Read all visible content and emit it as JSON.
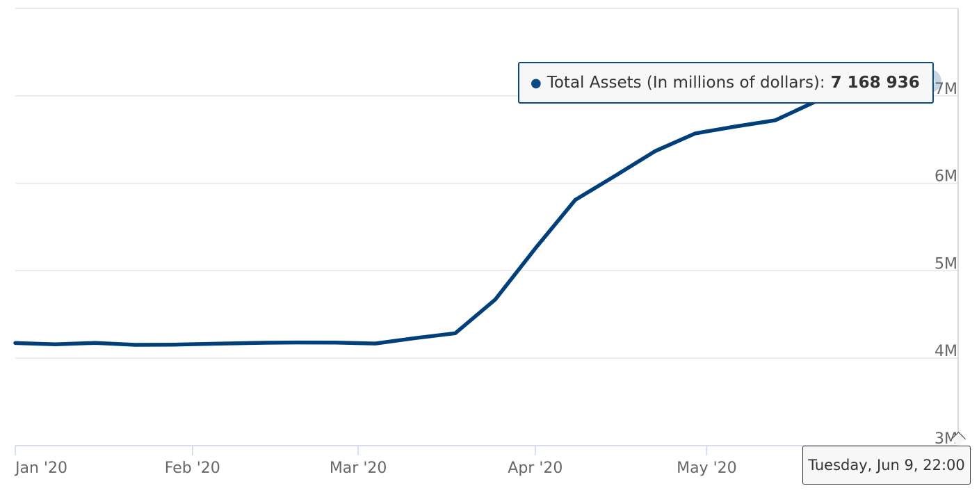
{
  "chart_data": {
    "type": "line",
    "title": "",
    "xlabel": "",
    "ylabel": "",
    "x_ticks": [
      "Jan '20",
      "Feb '20",
      "Mar '20",
      "Apr '20",
      "May '20"
    ],
    "y_ticks": [
      "3M",
      "4M",
      "5M",
      "6M",
      "7M"
    ],
    "ylim": [
      3000000,
      8000000
    ],
    "xlim": [
      "2020-01-01",
      "2020-06-14"
    ],
    "grid": true,
    "series": [
      {
        "name": "Total Assets (In millions of dollars)",
        "color": "#003f7a",
        "x": [
          "2020-01-01",
          "2020-01-08",
          "2020-01-15",
          "2020-01-22",
          "2020-01-29",
          "2020-02-05",
          "2020-02-12",
          "2020-02-19",
          "2020-02-26",
          "2020-03-04",
          "2020-03-11",
          "2020-03-18",
          "2020-03-25",
          "2020-04-01",
          "2020-04-08",
          "2020-04-15",
          "2020-04-22",
          "2020-04-29",
          "2020-05-06",
          "2020-05-13",
          "2020-05-20",
          "2020-05-27",
          "2020-06-03",
          "2020-06-09"
        ],
        "values": [
          4173000,
          4158000,
          4175000,
          4153000,
          4155000,
          4165000,
          4175000,
          4180000,
          4178000,
          4168000,
          4230000,
          4285000,
          4671000,
          5255000,
          5810000,
          6086000,
          6368000,
          6570000,
          6649000,
          6720000,
          6933000,
          7023000,
          7097000,
          7168936
        ]
      }
    ],
    "tooltip": {
      "series_name": "Total Assets (In millions of dollars):",
      "value": "7 168 936",
      "date": "Tuesday, Jun 9, 22:00"
    }
  }
}
